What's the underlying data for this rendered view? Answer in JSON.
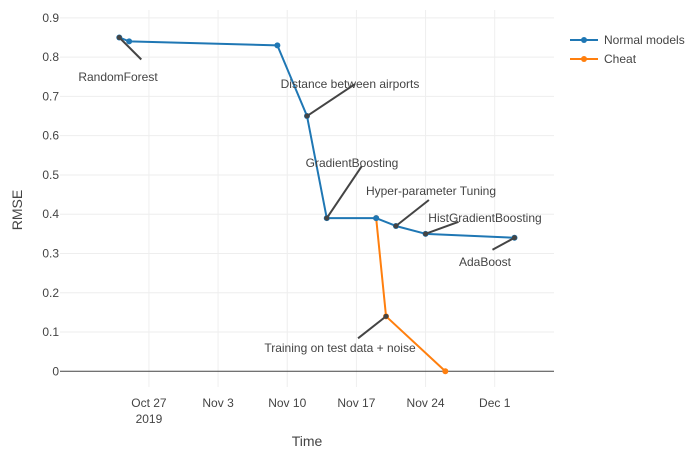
{
  "chart_data": {
    "type": "line",
    "xlabel": "Time",
    "ylabel": "RMSE",
    "ylim": [
      -0.04,
      0.92
    ],
    "y_ticks": [
      0,
      0.1,
      0.2,
      0.3,
      0.4,
      0.5,
      0.6,
      0.7,
      0.8,
      0.9
    ],
    "y_tick_labels": [
      "0",
      "0.1",
      "0.2",
      "0.3",
      "0.4",
      "0.5",
      "0.6",
      "0.7",
      "0.8",
      "0.9"
    ],
    "xlim": [
      "2019-10-18",
      "2019-12-07"
    ],
    "x_ticks": [
      {
        "date": "2019-10-27",
        "label": "Oct 27",
        "sublabel": "2019"
      },
      {
        "date": "2019-11-03",
        "label": "Nov 3",
        "sublabel": ""
      },
      {
        "date": "2019-11-10",
        "label": "Nov 10",
        "sublabel": ""
      },
      {
        "date": "2019-11-17",
        "label": "Nov 17",
        "sublabel": ""
      },
      {
        "date": "2019-11-24",
        "label": "Nov 24",
        "sublabel": ""
      },
      {
        "date": "2019-12-01",
        "label": "Dec 1",
        "sublabel": ""
      }
    ],
    "grid": true,
    "legend_position": "right",
    "series": [
      {
        "name": "Normal models",
        "color": "#1f77b4",
        "points": [
          {
            "x": "2019-10-24",
            "y": 0.85
          },
          {
            "x": "2019-10-25",
            "y": 0.84
          },
          {
            "x": "2019-11-09",
            "y": 0.83
          },
          {
            "x": "2019-11-12",
            "y": 0.65
          },
          {
            "x": "2019-11-14",
            "y": 0.39
          },
          {
            "x": "2019-11-19",
            "y": 0.39
          },
          {
            "x": "2019-11-21",
            "y": 0.37
          },
          {
            "x": "2019-11-24",
            "y": 0.35
          },
          {
            "x": "2019-12-03",
            "y": 0.34
          }
        ]
      },
      {
        "name": "Cheat",
        "color": "#ff7f0e",
        "points": [
          {
            "x": "2019-11-19",
            "y": 0.39
          },
          {
            "x": "2019-11-20",
            "y": 0.14
          },
          {
            "x": "2019-11-26",
            "y": 0.0
          }
        ]
      }
    ],
    "annotations": [
      {
        "text": "RandomForest",
        "x": "2019-10-24",
        "y": 0.85,
        "anchor": "below"
      },
      {
        "text": "Distance between airports",
        "x": "2019-11-12",
        "y": 0.65,
        "anchor": "above"
      },
      {
        "text": "GradientBoosting",
        "x": "2019-11-14",
        "y": 0.39,
        "anchor": "above"
      },
      {
        "text": "Hyper-parameter Tuning",
        "x": "2019-11-21",
        "y": 0.37,
        "anchor": "above"
      },
      {
        "text": "HistGradientBoosting",
        "x": "2019-11-24",
        "y": 0.35,
        "anchor": "above"
      },
      {
        "text": "AdaBoost",
        "x": "2019-12-03",
        "y": 0.34,
        "anchor": "below"
      },
      {
        "text": "Training on test data + noise",
        "x": "2019-11-20",
        "y": 0.14,
        "anchor": "below"
      }
    ]
  }
}
